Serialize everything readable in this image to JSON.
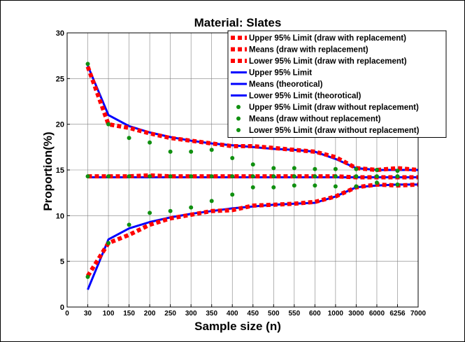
{
  "chart_data": {
    "type": "line",
    "title": "Material: Slates",
    "xlabel": "Sample size (n)",
    "ylabel": "Proportion(%)",
    "ylim": [
      0,
      30
    ],
    "y_ticks": [
      0,
      5,
      10,
      15,
      20,
      25,
      30
    ],
    "grid": true,
    "legend_placement": "top-right",
    "x_ticks": [
      "0",
      "30",
      "100",
      "150",
      "200",
      "250",
      "300",
      "350",
      "400",
      "450",
      "500",
      "550",
      "600",
      "1000",
      "3000",
      "6000",
      "6256",
      "7000"
    ],
    "x": [
      "30",
      "100",
      "150",
      "200",
      "250",
      "300",
      "350",
      "400",
      "450",
      "500",
      "550",
      "600",
      "1000",
      "3000",
      "6000",
      "6256",
      "7000"
    ],
    "series": [
      {
        "name": "Upper 95% Limit (draw with replacement)",
        "style": "dashed",
        "color": "#ff0000",
        "values": [
          26.3,
          20.0,
          19.6,
          19.0,
          18.5,
          18.2,
          17.9,
          17.6,
          17.6,
          17.4,
          17.2,
          17.0,
          16.4,
          15.2,
          15.0,
          15.2,
          15.0
        ]
      },
      {
        "name": "Means (draw with replacement)",
        "style": "dashed",
        "color": "#ff0000",
        "values": [
          14.3,
          14.3,
          14.3,
          14.4,
          14.3,
          14.3,
          14.3,
          14.3,
          14.3,
          14.3,
          14.3,
          14.3,
          14.3,
          14.2,
          14.2,
          14.2,
          14.2
        ]
      },
      {
        "name": "Lower 95% Limit (draw with replacement)",
        "style": "dashed",
        "color": "#ff0000",
        "values": [
          3.4,
          7.0,
          7.9,
          9.0,
          9.7,
          10.1,
          10.5,
          10.6,
          11.1,
          11.2,
          11.3,
          11.5,
          12.1,
          13.1,
          13.4,
          13.3,
          13.4
        ]
      },
      {
        "name": "Upper 95% Limit",
        "style": "solid",
        "color": "#0000ff",
        "values": [
          26.4,
          21.0,
          19.8,
          19.1,
          18.6,
          18.2,
          17.9,
          17.7,
          17.5,
          17.3,
          17.2,
          17.0,
          16.2,
          15.2,
          15.0,
          15.0,
          15.0
        ]
      },
      {
        "name": "Means (theorotical)",
        "style": "solid",
        "color": "#0000ff",
        "values": [
          14.2,
          14.2,
          14.2,
          14.2,
          14.2,
          14.2,
          14.2,
          14.2,
          14.2,
          14.2,
          14.2,
          14.2,
          14.2,
          14.2,
          14.2,
          14.2,
          14.2
        ]
      },
      {
        "name": "Lower 95% Limit (theorotical)",
        "style": "solid",
        "color": "#0000ff",
        "values": [
          1.9,
          7.4,
          8.6,
          9.3,
          9.8,
          10.2,
          10.5,
          10.8,
          11.0,
          11.2,
          11.3,
          11.4,
          12.1,
          13.1,
          13.3,
          13.4,
          13.4
        ]
      },
      {
        "name": "Upper 95% Limit (draw without replacement)",
        "style": "dots",
        "color": "#109010",
        "values": [
          26.6,
          20.0,
          18.5,
          18.0,
          17.0,
          17.0,
          17.2,
          16.3,
          15.6,
          15.2,
          15.2,
          15.1,
          15.1,
          15.1,
          15.0,
          14.9,
          null
        ]
      },
      {
        "name": "Means (draw without replacement)",
        "style": "dots",
        "color": "#109010",
        "values": [
          14.3,
          14.3,
          14.3,
          14.3,
          14.3,
          14.3,
          14.3,
          14.3,
          14.3,
          14.3,
          14.3,
          14.3,
          14.3,
          14.3,
          14.3,
          14.3,
          null
        ]
      },
      {
        "name": "Lower 95% Limit (draw without replacement)",
        "style": "dots",
        "color": "#109010",
        "values": [
          3.3,
          7.0,
          9.0,
          10.3,
          10.5,
          10.9,
          11.6,
          12.3,
          13.1,
          13.1,
          13.3,
          13.3,
          13.2,
          13.2,
          13.6,
          13.4,
          null
        ]
      }
    ]
  }
}
